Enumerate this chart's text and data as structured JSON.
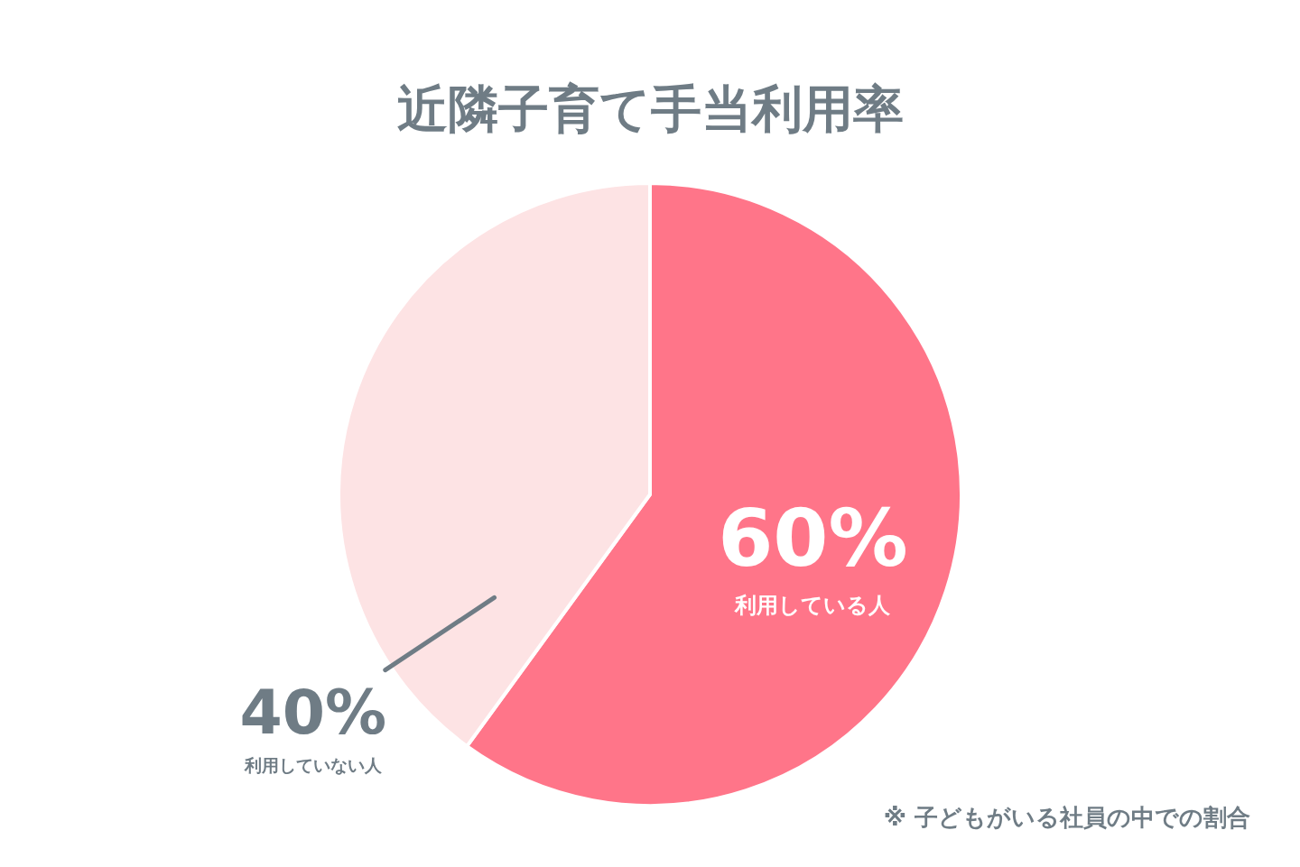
{
  "chart_data": {
    "type": "pie",
    "title": "近隣子育て手当利用率",
    "categories": [
      "利用している人",
      "利用していない人"
    ],
    "values": [
      60,
      40
    ],
    "colors": [
      "#ff7589",
      "#fde3e4"
    ],
    "value_labels": [
      "60%",
      "40%"
    ],
    "annotations": [
      "※ 子どもがいる社員の中での割合"
    ]
  }
}
